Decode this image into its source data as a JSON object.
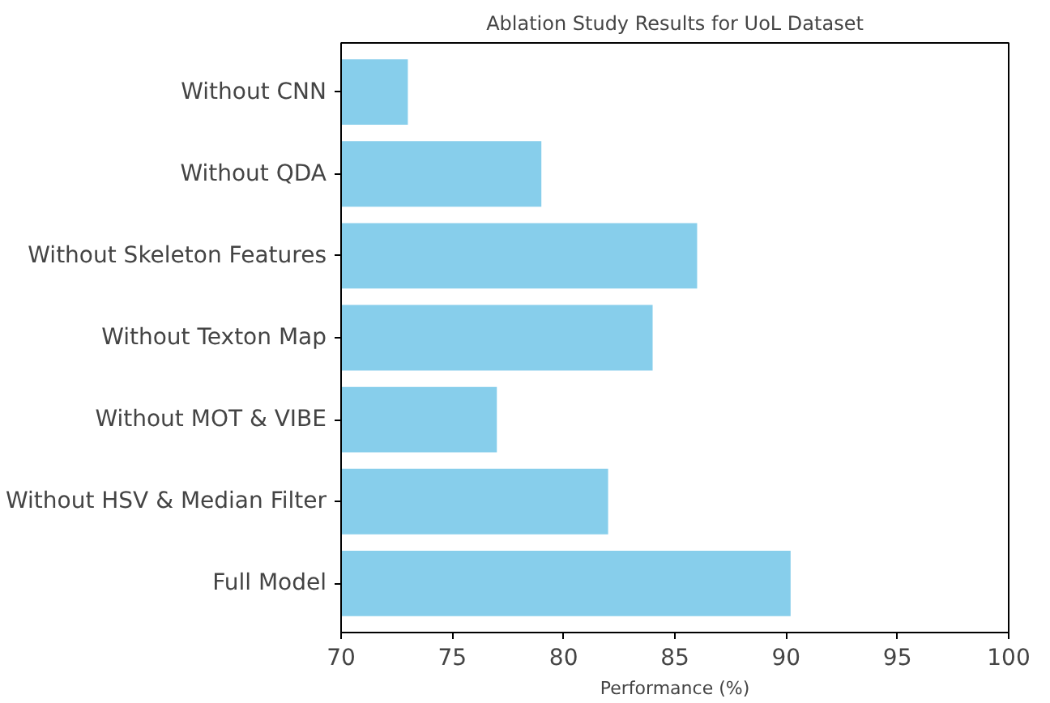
{
  "chart_data": {
    "type": "bar",
    "orientation": "horizontal",
    "title": "Ablation Study Results for UoL Dataset",
    "xlabel": "Performance (%)",
    "categories": [
      "Without CNN",
      "Without QDA",
      "Without Skeleton Features",
      "Without Texton Map",
      "Without MOT & VIBE",
      "Without HSV & Median Filter",
      "Full Model"
    ],
    "values": [
      73,
      79,
      86,
      84,
      77,
      82,
      90.2
    ],
    "color": "#87ceeb",
    "xlim": [
      70,
      100
    ],
    "xticks": [
      70,
      75,
      80,
      85,
      90,
      95,
      100
    ],
    "grid": false
  }
}
